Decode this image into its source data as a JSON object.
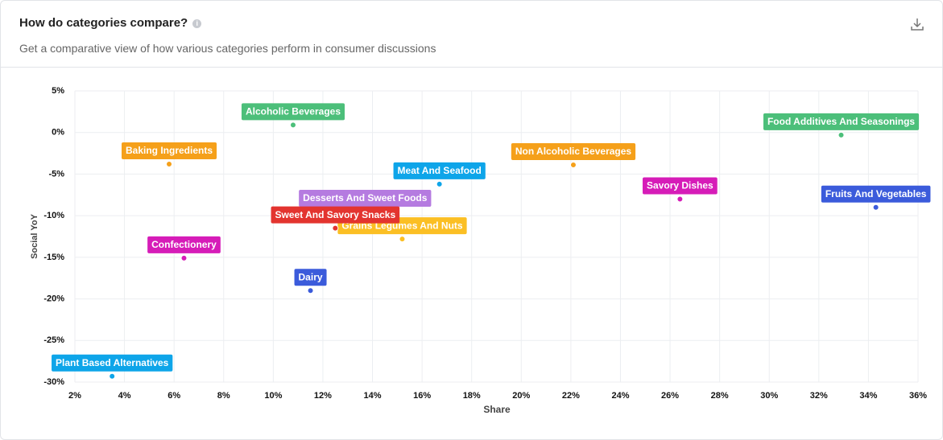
{
  "chart_data": {
    "type": "scatter",
    "title": "How do categories compare?",
    "subtitle": "Get a comparative view of how various categories perform in consumer discussions",
    "x_label": "Share",
    "y_label": "Social YoY",
    "xlim": [
      2,
      36
    ],
    "xticks": [
      {
        "value": 2,
        "label": "2%"
      },
      {
        "value": 4,
        "label": "4%"
      },
      {
        "value": 6,
        "label": "6%"
      },
      {
        "value": 8,
        "label": "8%"
      },
      {
        "value": 10,
        "label": "10%"
      },
      {
        "value": 12,
        "label": "12%"
      },
      {
        "value": 14,
        "label": "14%"
      },
      {
        "value": 16,
        "label": "16%"
      },
      {
        "value": 18,
        "label": "18%"
      },
      {
        "value": 20,
        "label": "20%"
      },
      {
        "value": 22,
        "label": "22%"
      },
      {
        "value": 24,
        "label": "24%"
      },
      {
        "value": 26,
        "label": "26%"
      },
      {
        "value": 28,
        "label": "28%"
      },
      {
        "value": 30,
        "label": "30%"
      },
      {
        "value": 32,
        "label": "32%"
      },
      {
        "value": 34,
        "label": "34%"
      },
      {
        "value": 36,
        "label": "36%"
      }
    ],
    "ylim": [
      -30,
      5
    ],
    "yticks": [
      {
        "value": 5,
        "label": "5%"
      },
      {
        "value": 0,
        "label": "0%"
      },
      {
        "value": -5,
        "label": "-5%"
      },
      {
        "value": -10,
        "label": "-10%"
      },
      {
        "value": -15,
        "label": "-15%"
      },
      {
        "value": -20,
        "label": "-20%"
      },
      {
        "value": -25,
        "label": "-25%"
      },
      {
        "value": -30,
        "label": "-30%"
      }
    ],
    "grid": true,
    "series": [
      {
        "name": "Alcoholic Beverages",
        "color": "#4cbf7a",
        "x": [
          10.8
        ],
        "values": [
          0.9
        ]
      },
      {
        "name": "Baking Ingredients",
        "color": "#f5a01a",
        "x": [
          5.8
        ],
        "values": [
          -3.8
        ]
      },
      {
        "name": "Food Additives And Seasonings",
        "color": "#4cbf7a",
        "x": [
          32.9
        ],
        "values": [
          -0.3
        ]
      },
      {
        "name": "Non Alcoholic Beverages",
        "color": "#f5a01a",
        "x": [
          22.1
        ],
        "values": [
          -3.9
        ]
      },
      {
        "name": "Meat And Seafood",
        "color": "#0ea5e9",
        "x": [
          16.7
        ],
        "values": [
          -6.2
        ]
      },
      {
        "name": "Savory Dishes",
        "color": "#d61cb8",
        "x": [
          26.4
        ],
        "values": [
          -8
        ]
      },
      {
        "name": "Fruits And Vegetables",
        "color": "#3b5bdb",
        "x": [
          34.3
        ],
        "values": [
          -9
        ]
      },
      {
        "name": "Desserts And Sweet Foods",
        "color": "#b57be0",
        "x": [
          13.7
        ],
        "values": [
          -9.5
        ]
      },
      {
        "name": "Grains Legumes And Nuts",
        "color": "#fbbf24",
        "x": [
          15.2
        ],
        "values": [
          -12.8
        ]
      },
      {
        "name": "Sweet And Savory Snacks",
        "color": "#e3342f",
        "x": [
          12.5
        ],
        "values": [
          -11.5
        ]
      },
      {
        "name": "Confectionery",
        "color": "#d61cb8",
        "x": [
          6.4
        ],
        "values": [
          -15.1
        ]
      },
      {
        "name": "Dairy",
        "color": "#3b5bdb",
        "x": [
          11.5
        ],
        "values": [
          -19
        ]
      },
      {
        "name": "Plant Based Alternatives",
        "color": "#0ea5e9",
        "x": [
          3.5
        ],
        "values": [
          -29.3
        ]
      }
    ]
  }
}
